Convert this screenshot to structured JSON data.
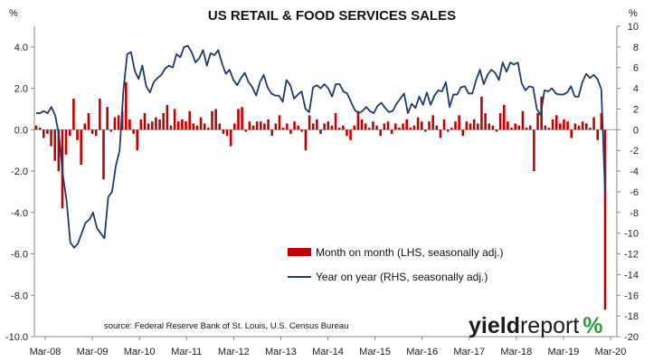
{
  "chart_data": {
    "type": "bar+line",
    "title": "US RETAIL & FOOD SERVICES SALES",
    "left_axis_unit": "%",
    "right_axis_unit": "%",
    "left_ylim": [
      -10,
      5
    ],
    "right_ylim": [
      -20,
      10
    ],
    "left_ticks": [
      "4.0",
      "2.0",
      "0.0",
      "-2.0",
      "-4.0",
      "-6.0",
      "-8.0",
      "-10.0"
    ],
    "left_tick_values": [
      4,
      2,
      0,
      -2,
      -4,
      -6,
      -8,
      -10
    ],
    "right_ticks": [
      "10",
      "8",
      "6",
      "4",
      "2",
      "0",
      "-2",
      "-4",
      "-6",
      "-8",
      "-10",
      "-12",
      "-14",
      "-16",
      "-18",
      "-20"
    ],
    "right_tick_values": [
      10,
      8,
      6,
      4,
      2,
      0,
      -2,
      -4,
      -6,
      -8,
      -10,
      -12,
      -14,
      -16,
      -18,
      -20
    ],
    "x_tick_labels": [
      "Mar-08",
      "Mar-09",
      "Mar-10",
      "Mar-11",
      "Mar-12",
      "Mar-13",
      "Mar-14",
      "Mar-15",
      "Mar-16",
      "Mar-17",
      "Mar-18",
      "Mar-19",
      "Mar-20"
    ],
    "x_start": "Mar-08",
    "x_end": "Mar-20",
    "grid": false,
    "legend_position": "lower-center",
    "series": [
      {
        "name": "Month on month (LHS, seasonally adj.)",
        "type": "bar",
        "axis": "left",
        "color": "#c00000",
        "values": [
          0.2,
          0.1,
          -0.4,
          -0.2,
          -0.8,
          -1.5,
          -2.0,
          -3.8,
          -1.2,
          -0.3,
          1.5,
          -0.5,
          -1.7,
          0.3,
          0.8,
          -0.2,
          -0.3,
          1.5,
          -2.4,
          1.1,
          -0.1,
          0.6,
          0.7,
          0.9,
          2.3,
          0.5,
          -0.2,
          -1.0,
          0.5,
          0.8,
          0.3,
          0.4,
          0.6,
          0.5,
          0.8,
          1.2,
          0.2,
          1.0,
          0.4,
          0.5,
          0.4,
          0.9,
          0.3,
          0.2,
          0.6,
          0.3,
          0.1,
          0.9,
          1.0,
          0.3,
          -0.2,
          -0.3,
          -0.8,
          0.3,
          1.0,
          1.1,
          -0.1,
          0.4,
          0.2,
          0.4,
          0.4,
          0.3,
          0.5,
          -0.3,
          0.3,
          0.7,
          0.1,
          0.3,
          -0.2,
          0.4,
          0.2,
          -0.1,
          -1.0,
          0.7,
          0.3,
          0.5,
          -0.2,
          0.3,
          0.4,
          0.2,
          0.8,
          0.1,
          0.2,
          -0.3,
          -0.5,
          0.2,
          0.9,
          0.5,
          0.3,
          0.1,
          0.4,
          0.2,
          -0.3,
          0.3,
          0.4,
          -0.2,
          0.3,
          0.1,
          0.3,
          0.5,
          0.1,
          0.2,
          0.6,
          0.4,
          -0.1,
          0.4,
          0.7,
          0.2,
          -0.4,
          0.5,
          -0.1,
          0.1,
          0.4,
          0.7,
          -0.3,
          0.4,
          0.3,
          0.5,
          0.3,
          1.6,
          0.8,
          0.3,
          0.2,
          -0.1,
          0.8,
          1.2,
          0.4,
          0.1,
          0.3,
          0.2,
          0.9,
          0.1,
          0.2,
          -2.0,
          0.8,
          1.6,
          0.2,
          0.1,
          0.5,
          0.7,
          0.3,
          0.5,
          0.4,
          -0.4,
          0.3,
          0.2,
          0.4,
          0.3,
          0.1,
          0.6,
          -0.5,
          0.8,
          -8.7
        ]
      },
      {
        "name": "Year on year (RHS, seasonally adj.)",
        "type": "line",
        "axis": "right",
        "color": "#1f3a6e",
        "values": [
          1.6,
          1.6,
          1.8,
          1.6,
          2.2,
          1.4,
          -0.5,
          -4.3,
          -6.8,
          -10.9,
          -11.4,
          -11.0,
          -10.0,
          -9.0,
          -8.7,
          -8.0,
          -9.5,
          -10.0,
          -10.5,
          -6.5,
          -6.0,
          -3.5,
          -2.0,
          3.8,
          7.3,
          7.5,
          5.7,
          4.9,
          6.2,
          4.2,
          3.6,
          4.6,
          5.0,
          5.3,
          5.9,
          6.2,
          6.0,
          7.3,
          7.0,
          8.0,
          8.1,
          7.5,
          6.5,
          6.9,
          7.7,
          6.2,
          7.4,
          7.2,
          7.7,
          6.4,
          5.4,
          5.8,
          4.8,
          4.3,
          5.0,
          5.5,
          4.6,
          4.1,
          3.3,
          4.6,
          5.3,
          4.1,
          3.5,
          3.3,
          3.3,
          2.7,
          4.8,
          4.3,
          3.0,
          3.4,
          3.7,
          2.0,
          1.7,
          4.1,
          4.3,
          4.0,
          4.4,
          4.0,
          3.2,
          4.4,
          4.4,
          3.7,
          3.5,
          2.7,
          1.9,
          1.6,
          1.8,
          2.2,
          1.8,
          1.6,
          2.3,
          2.6,
          2.1,
          1.7,
          1.8,
          2.5,
          3.0,
          3.5,
          1.6,
          2.5,
          2.1,
          3.2,
          2.4,
          3.6,
          2.4,
          3.3,
          3.8,
          3.7,
          4.6,
          2.2,
          3.4,
          3.4,
          4.1,
          4.2,
          3.5,
          3.5,
          4.8,
          5.8,
          4.4,
          5.3,
          5.8,
          5.5,
          4.8,
          6.5,
          5.6,
          6.5,
          6.3,
          6.5,
          4.5,
          3.8,
          4.2,
          4.1,
          2.0,
          1.4,
          3.8,
          3.7,
          4.0,
          3.5,
          3.4,
          3.4,
          3.6,
          4.2,
          3.2,
          3.2,
          4.6,
          5.4,
          5.0,
          5.3,
          4.9,
          3.9,
          -6.1
        ]
      }
    ]
  },
  "legend": {
    "bar_label": "Month on month (LHS, seasonally adj.)",
    "line_label": "Year on year (RHS, seasonally adj.)"
  },
  "source_note": "source: Federal Reserve Bank of St. Louis, U.S. Census Bureau",
  "logo": {
    "part1": "yield",
    "part2": "report",
    "part3": "%",
    "color_part3": "#2e9e3a"
  }
}
